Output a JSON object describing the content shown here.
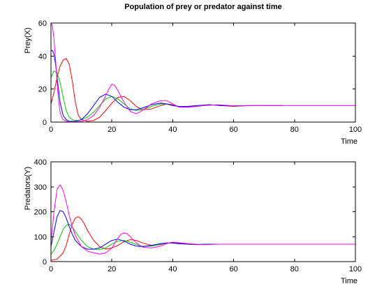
{
  "chart_data": [
    {
      "type": "line",
      "title": "Population of prey or predator against time",
      "xlabel": "Time",
      "ylabel": "Prey(X)",
      "xlim": [
        0,
        100
      ],
      "ylim": [
        0,
        60
      ],
      "xticks": [
        0,
        20,
        40,
        60,
        80,
        100
      ],
      "yticks": [
        0,
        20,
        40,
        60
      ],
      "grid": false,
      "series": [
        {
          "color": "#ff0000",
          "x": [
            0,
            1,
            2,
            3,
            4,
            5,
            6,
            7,
            8,
            9,
            10,
            12,
            14,
            16,
            18,
            20,
            22,
            24,
            26,
            28,
            30,
            33,
            36,
            38,
            40,
            42,
            45,
            48,
            52,
            56,
            60,
            65,
            70,
            76
          ],
          "y": [
            11,
            18,
            27,
            34,
            37.5,
            38.5,
            35,
            25,
            12,
            4,
            1.5,
            0.5,
            1,
            3,
            7,
            11.5,
            15,
            15.5,
            13,
            9.5,
            7.5,
            8,
            10,
            11,
            10.5,
            9.5,
            9,
            9.5,
            10.5,
            10,
            9.5,
            10,
            10,
            10
          ]
        },
        {
          "color": "#00cc00",
          "x": [
            0,
            1,
            2,
            3,
            4,
            5,
            6,
            7,
            8,
            9,
            10,
            12,
            14,
            16,
            18,
            20,
            22,
            24,
            26,
            28,
            30,
            33,
            36,
            38,
            40,
            42,
            45,
            48,
            52,
            56,
            60,
            65,
            70,
            76
          ],
          "y": [
            27,
            31,
            30,
            24,
            15,
            7,
            3,
            1.5,
            1,
            1,
            1.5,
            3,
            6,
            10,
            14,
            15.5,
            14,
            11,
            8,
            7,
            7.5,
            9.5,
            11,
            11,
            10,
            9.5,
            9.5,
            10,
            10.5,
            10,
            9.8,
            10,
            10,
            10
          ]
        },
        {
          "color": "#0000ff",
          "x": [
            0,
            0.5,
            1,
            1.5,
            2,
            3,
            4,
            5,
            6,
            8,
            10,
            12,
            14,
            16,
            18,
            20,
            22,
            24,
            26,
            28,
            30,
            33,
            36,
            38,
            40,
            42,
            45,
            48,
            52,
            56,
            60,
            65,
            70,
            76
          ],
          "y": [
            43,
            43.5,
            41,
            35,
            27,
            12,
            4,
            1.5,
            0.5,
            0.5,
            1.5,
            5,
            10,
            15,
            17,
            15.5,
            12,
            9,
            7.5,
            7.5,
            8.5,
            10.5,
            11.5,
            11,
            10,
            9.5,
            9.5,
            10,
            10.5,
            10,
            9.8,
            10,
            10,
            10
          ]
        },
        {
          "color": "#ff00ff",
          "x": [
            0,
            0.5,
            1,
            1.5,
            2,
            2.5,
            3,
            3.5,
            4,
            5,
            6,
            8,
            10,
            12,
            14,
            16,
            18,
            19,
            20,
            21,
            22,
            24,
            26,
            28,
            30,
            33,
            36,
            38,
            40,
            42,
            45,
            50,
            55,
            60,
            70,
            80,
            90,
            100
          ],
          "y": [
            60,
            58,
            50,
            38,
            24,
            13,
            6,
            3,
            1.5,
            0.5,
            0.2,
            0.2,
            0.5,
            1.5,
            4,
            9,
            16,
            20,
            23,
            22,
            19,
            12,
            6.5,
            5,
            7,
            11,
            13,
            13,
            11,
            9,
            9,
            10,
            10.5,
            9.8,
            10,
            10,
            10,
            10
          ]
        }
      ]
    },
    {
      "type": "line",
      "xlabel": "Time",
      "ylabel": "Predators(Y)",
      "xlim": [
        0,
        100
      ],
      "ylim": [
        0,
        400
      ],
      "xticks": [
        0,
        20,
        40,
        60,
        80,
        100
      ],
      "yticks": [
        0,
        100,
        200,
        300,
        400
      ],
      "grid": false,
      "series": [
        {
          "color": "#ff0000",
          "x": [
            0,
            2,
            4,
            5,
            6,
            7,
            8,
            9,
            10,
            11,
            12,
            14,
            16,
            18,
            20,
            22,
            24,
            26,
            28,
            30,
            33,
            36,
            38,
            40,
            42,
            45,
            48,
            52,
            56,
            62
          ],
          "y": [
            5,
            10,
            35,
            65,
            110,
            150,
            175,
            180,
            170,
            150,
            125,
            85,
            60,
            50,
            55,
            65,
            80,
            88,
            85,
            75,
            65,
            68,
            74,
            76,
            74,
            70,
            68,
            70,
            70,
            70
          ]
        },
        {
          "color": "#00cc00",
          "x": [
            0,
            1,
            2,
            3,
            4,
            5,
            6,
            7,
            8,
            10,
            12,
            14,
            16,
            18,
            20,
            22,
            24,
            26,
            28,
            30,
            33,
            36,
            38,
            40,
            42,
            45,
            48,
            52,
            56,
            62
          ],
          "y": [
            30,
            45,
            70,
            100,
            130,
            145,
            150,
            140,
            120,
            85,
            60,
            50,
            48,
            55,
            70,
            82,
            85,
            78,
            68,
            62,
            62,
            70,
            75,
            74,
            72,
            70,
            69,
            70,
            70,
            70
          ]
        },
        {
          "color": "#0000ff",
          "x": [
            0,
            1,
            2,
            3,
            4,
            5,
            6,
            7,
            8,
            10,
            12,
            14,
            16,
            18,
            20,
            22,
            24,
            26,
            28,
            30,
            33,
            36,
            38,
            40,
            42,
            45,
            48,
            52,
            56,
            62
          ],
          "y": [
            60,
            120,
            180,
            205,
            200,
            175,
            140,
            110,
            85,
            60,
            50,
            50,
            55,
            70,
            85,
            90,
            82,
            70,
            62,
            60,
            65,
            72,
            75,
            74,
            72,
            70,
            69,
            70,
            70,
            70
          ]
        },
        {
          "color": "#ff00ff",
          "x": [
            0,
            1,
            2,
            3,
            4,
            5,
            6,
            7,
            8,
            10,
            12,
            14,
            16,
            18,
            20,
            22,
            23,
            24,
            25,
            26,
            28,
            30,
            33,
            36,
            38,
            40,
            42,
            45,
            50,
            55,
            60,
            70,
            80,
            90,
            100
          ],
          "y": [
            80,
            200,
            290,
            308,
            285,
            240,
            185,
            140,
            105,
            60,
            42,
            35,
            30,
            35,
            55,
            95,
            110,
            115,
            112,
            100,
            75,
            58,
            55,
            62,
            72,
            78,
            76,
            72,
            68,
            70,
            70,
            70,
            70,
            70,
            70
          ]
        }
      ]
    }
  ]
}
